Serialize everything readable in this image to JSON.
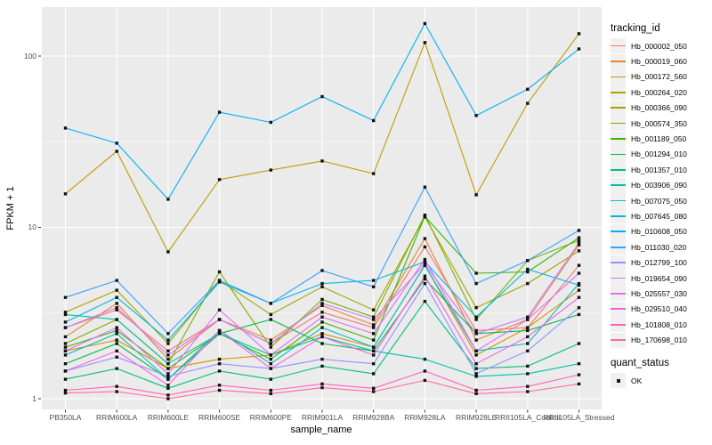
{
  "figure": {
    "y_axis_title": "FPKM + 1",
    "x_axis_title": "sample_name",
    "legend": {
      "tracking_title": "tracking_id",
      "quant_title": "quant_status",
      "quant_items": [
        {
          "label": "OK",
          "marker": "black-square"
        }
      ]
    }
  },
  "chart_data": {
    "type": "line",
    "x_type": "categorical",
    "log_y": true,
    "title": "",
    "xlabel": "sample_name",
    "ylabel": "FPKM + 1",
    "ylim_log": [
      0.87,
      195
    ],
    "y_ticks": [
      1,
      10,
      100
    ],
    "y_minor_ticks": [
      3.1623,
      31.623
    ],
    "grid": "on",
    "legend_position": "right",
    "panel_bg": "#EBEBEB",
    "grid_color": "#FFFFFF",
    "tick_color": "#333333",
    "marker": {
      "shape": "square",
      "size": 3.4,
      "color": "#111111"
    },
    "categories": [
      "PB350LA",
      "RRIM600LA",
      "RRIM600LE",
      "RRIM600SE",
      "RRIM600PE",
      "RRIM901LA",
      "RRIM928BA",
      "RRIM928LA",
      "RRIM928LE",
      "RRII105LA_Control",
      "RRII105LA_Stressed"
    ],
    "series": [
      {
        "name": "Hb_000002_050",
        "color": "#F8766D",
        "values": [
          2.6,
          3.3,
          1.9,
          2.9,
          2.1,
          3.2,
          2.6,
          7.7,
          2.5,
          2.6,
          6.0
        ]
      },
      {
        "name": "Hb_000019_060",
        "color": "#EA8331",
        "values": [
          2.3,
          3.6,
          1.7,
          2.9,
          2.2,
          3.5,
          2.7,
          8.6,
          2.2,
          2.9,
          7.9
        ]
      },
      {
        "name": "Hb_000172_560",
        "color": "#D89000",
        "values": [
          1.9,
          2.2,
          1.5,
          1.7,
          1.8,
          2.4,
          2.0,
          6.0,
          1.8,
          2.6,
          4.3
        ]
      },
      {
        "name": "Hb_000264_020",
        "color": "#C09B00",
        "values": [
          15.7,
          27.8,
          7.2,
          19.0,
          21.6,
          24.4,
          20.6,
          120.0,
          15.5,
          53.0,
          135.0
        ]
      },
      {
        "name": "Hb_000366_090",
        "color": "#A3A500",
        "values": [
          3.2,
          4.3,
          2.1,
          4.9,
          3.1,
          4.5,
          3.3,
          11.5,
          3.4,
          4.7,
          7.3
        ]
      },
      {
        "name": "Hb_000574_350",
        "color": "#7CAE00",
        "values": [
          2.1,
          2.9,
          1.6,
          5.5,
          2.0,
          3.8,
          3.0,
          11.8,
          2.9,
          6.4,
          8.4
        ]
      },
      {
        "name": "Hb_001189_050",
        "color": "#39B600",
        "values": [
          2.0,
          2.5,
          1.5,
          2.4,
          1.7,
          2.8,
          2.2,
          11.6,
          5.4,
          5.5,
          8.7
        ]
      },
      {
        "name": "Hb_001294_010",
        "color": "#00BB4E",
        "values": [
          1.6,
          2.1,
          1.3,
          2.4,
          2.9,
          2.1,
          1.9,
          5.0,
          2.4,
          2.5,
          3.1
        ]
      },
      {
        "name": "Hb_001357_010",
        "color": "#00BF7D",
        "values": [
          1.3,
          1.5,
          1.15,
          1.45,
          1.3,
          1.55,
          1.4,
          3.7,
          1.5,
          1.55,
          2.1
        ]
      },
      {
        "name": "Hb_003906_090",
        "color": "#00C1A3",
        "values": [
          3.1,
          2.9,
          1.6,
          2.4,
          1.8,
          2.3,
          1.9,
          1.7,
          1.35,
          1.4,
          1.6
        ]
      },
      {
        "name": "Hb_007075_050",
        "color": "#00BFC4",
        "values": [
          1.8,
          2.4,
          1.3,
          2.5,
          1.6,
          2.6,
          2.0,
          6.0,
          1.9,
          2.1,
          4.7
        ]
      },
      {
        "name": "Hb_007645_080",
        "color": "#00BAE0",
        "values": [
          2.8,
          3.9,
          2.2,
          4.8,
          3.6,
          4.7,
          4.9,
          6.3,
          3.0,
          5.7,
          4.6
        ]
      },
      {
        "name": "Hb_010608_050",
        "color": "#00B0F6",
        "values": [
          38.0,
          31.0,
          14.6,
          47.0,
          41.0,
          58.0,
          42.0,
          155.0,
          45.0,
          64.0,
          110.0
        ]
      },
      {
        "name": "Hb_011030_020",
        "color": "#35A2FF",
        "values": [
          3.9,
          4.9,
          2.4,
          4.9,
          3.6,
          5.6,
          4.5,
          17.2,
          4.7,
          6.4,
          9.6
        ]
      },
      {
        "name": "Hb_012799_100",
        "color": "#9590FF",
        "values": [
          1.45,
          1.75,
          1.35,
          1.6,
          1.5,
          1.7,
          1.6,
          4.7,
          1.4,
          1.9,
          3.4
        ]
      },
      {
        "name": "Hb_019654_090",
        "color": "#C77CFF",
        "values": [
          2.6,
          3.4,
          1.8,
          2.9,
          2.1,
          3.6,
          2.9,
          6.1,
          2.4,
          3.0,
          8.1
        ]
      },
      {
        "name": "Hb_025557_030",
        "color": "#E76BF3",
        "values": [
          1.9,
          2.6,
          1.4,
          3.3,
          1.8,
          3.0,
          2.4,
          6.5,
          1.9,
          2.9,
          5.4
        ]
      },
      {
        "name": "Hb_029510_040",
        "color": "#FA62DB",
        "values": [
          1.45,
          1.9,
          1.2,
          2.5,
          1.5,
          2.3,
          1.8,
          5.2,
          1.6,
          2.3,
          3.9
        ]
      },
      {
        "name": "Hb_101808_010",
        "color": "#FF62BC",
        "values": [
          1.12,
          1.18,
          1.05,
          1.2,
          1.12,
          1.22,
          1.15,
          1.45,
          1.12,
          1.18,
          1.38
        ]
      },
      {
        "name": "Hb_170698_010",
        "color": "#FF6A98",
        "values": [
          1.08,
          1.1,
          1.0,
          1.12,
          1.07,
          1.16,
          1.1,
          1.28,
          1.07,
          1.1,
          1.22
        ]
      }
    ]
  }
}
